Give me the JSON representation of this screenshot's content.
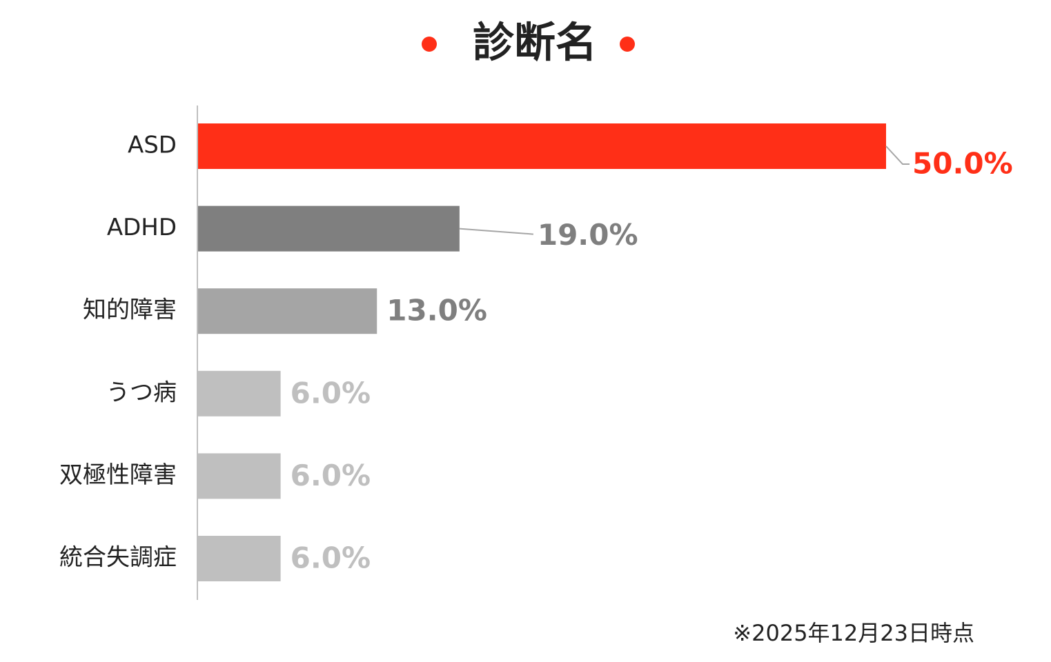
{
  "chart_data": {
    "type": "bar",
    "orientation": "horizontal",
    "title": "診断名",
    "categories": [
      "ASD",
      "ADHD",
      "知的障害",
      "うつ病",
      "双極性障害",
      "統合失調症"
    ],
    "values": [
      50,
      19,
      13,
      6,
      6,
      6
    ],
    "value_labels": [
      "50.0%",
      "19.0%",
      "13.0%",
      "6.0%",
      "6.0%",
      "6.0%"
    ],
    "colors": [
      "#ff2f17",
      "#7f7f7f",
      "#a5a5a5",
      "#bfbfbf",
      "#bfbfbf",
      "#bfbfbf"
    ],
    "label_colors": [
      "#ff2f17",
      "#7f7f7f",
      "#7f7f7f",
      "#bfbfbf",
      "#bfbfbf",
      "#bfbfbf"
    ],
    "xlim": [
      0,
      50
    ],
    "note": "※2025年12月23日時点"
  }
}
